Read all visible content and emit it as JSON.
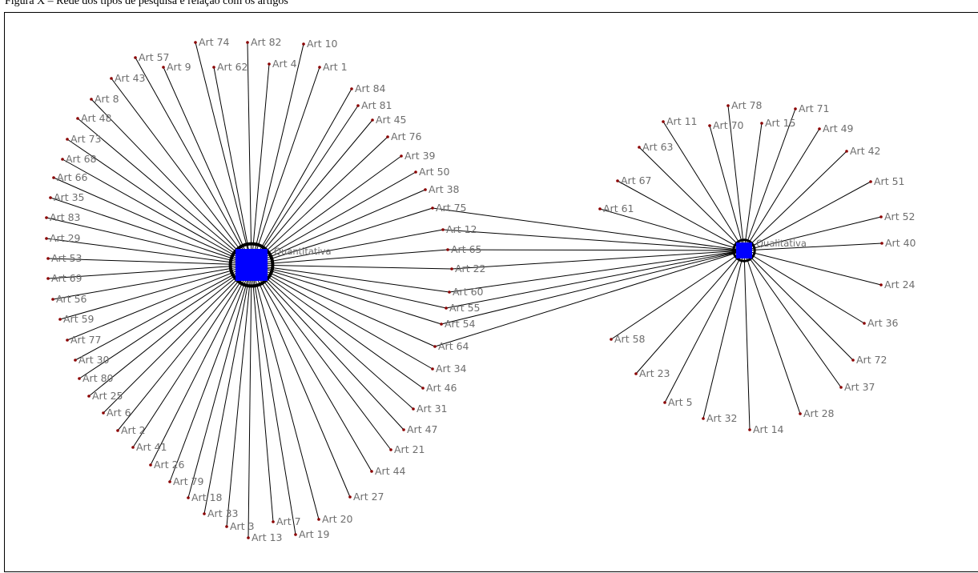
{
  "caption": "Figura X – Rede dos tipos de pesquisa e relação com os artigos",
  "hubs": [
    {
      "id": "quant",
      "label": "Quantitativa",
      "color": "#0000ff",
      "articles": [
        "Art 74",
        "Art 82",
        "Art 10",
        "Art 4",
        "Art 1",
        "Art 62",
        "Art 9",
        "Art 57",
        "Art 43",
        "Art 8",
        "Art 48",
        "Art 73",
        "Art 68",
        "Art 66",
        "Art 35",
        "Art 83",
        "Art 29",
        "Art 53",
        "Art 69",
        "Art 56",
        "Art 59",
        "Art 77",
        "Art 30",
        "Art 80",
        "Art 25",
        "Art 6",
        "Art 2",
        "Art 41",
        "Art 26",
        "Art 79",
        "Art 18",
        "Art 33",
        "Art 3",
        "Art 13",
        "Art 7",
        "Art 19",
        "Art 20",
        "Art 27",
        "Art 44",
        "Art 21",
        "Art 47",
        "Art 31",
        "Art 46",
        "Art 34",
        "Art 64",
        "Art 54",
        "Art 55",
        "Art 60",
        "Art 22",
        "Art 65",
        "Art 12",
        "Art 75",
        "Art 38",
        "Art 50",
        "Art 39",
        "Art 76",
        "Art 45",
        "Art 81",
        "Art 84"
      ]
    },
    {
      "id": "qual",
      "label": "Qualitativa",
      "color": "#0000ff",
      "articles": [
        "Art 78",
        "Art 71",
        "Art 11",
        "Art 70",
        "Art 15",
        "Art 49",
        "Art 63",
        "Art 42",
        "Art 67",
        "Art 51",
        "Art 61",
        "Art 52",
        "Art 40",
        "Art 24",
        "Art 36",
        "Art 72",
        "Art 37",
        "Art 28",
        "Art 14",
        "Art 32",
        "Art 5",
        "Art 23",
        "Art 58"
      ]
    }
  ],
  "shared_articles": [
    "Art 75",
    "Art 12",
    "Art 65",
    "Art 22",
    "Art 60",
    "Art 55",
    "Art 54",
    "Art 64"
  ],
  "colors": {
    "edge": "#000000",
    "node": "#8b0000",
    "label": "#6e6e6e",
    "hub": "#0000ff"
  }
}
